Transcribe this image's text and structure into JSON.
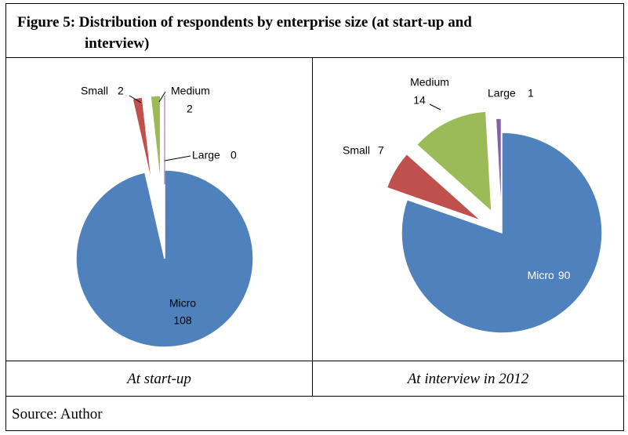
{
  "title": [
    "Figure 5: Distribution of respondents by enterprise size (at start-up and",
    "interview)"
  ],
  "chart_data": [
    {
      "type": "pie",
      "caption": "At start-up",
      "categories": [
        "Micro",
        "Small",
        "Medium",
        "Large"
      ],
      "values": [
        108,
        2,
        2,
        0
      ],
      "colors": [
        "#4f81bd",
        "#c0504d",
        "#9bbb59",
        "#8064a2"
      ]
    },
    {
      "type": "pie",
      "caption": "At interview in 2012",
      "categories": [
        "Micro",
        "Small",
        "Medium",
        "Large"
      ],
      "values": [
        90,
        7,
        14,
        1
      ],
      "colors": [
        "#4f81bd",
        "#c0504d",
        "#9bbb59",
        "#8064a2"
      ]
    }
  ],
  "source": "Source: Author"
}
